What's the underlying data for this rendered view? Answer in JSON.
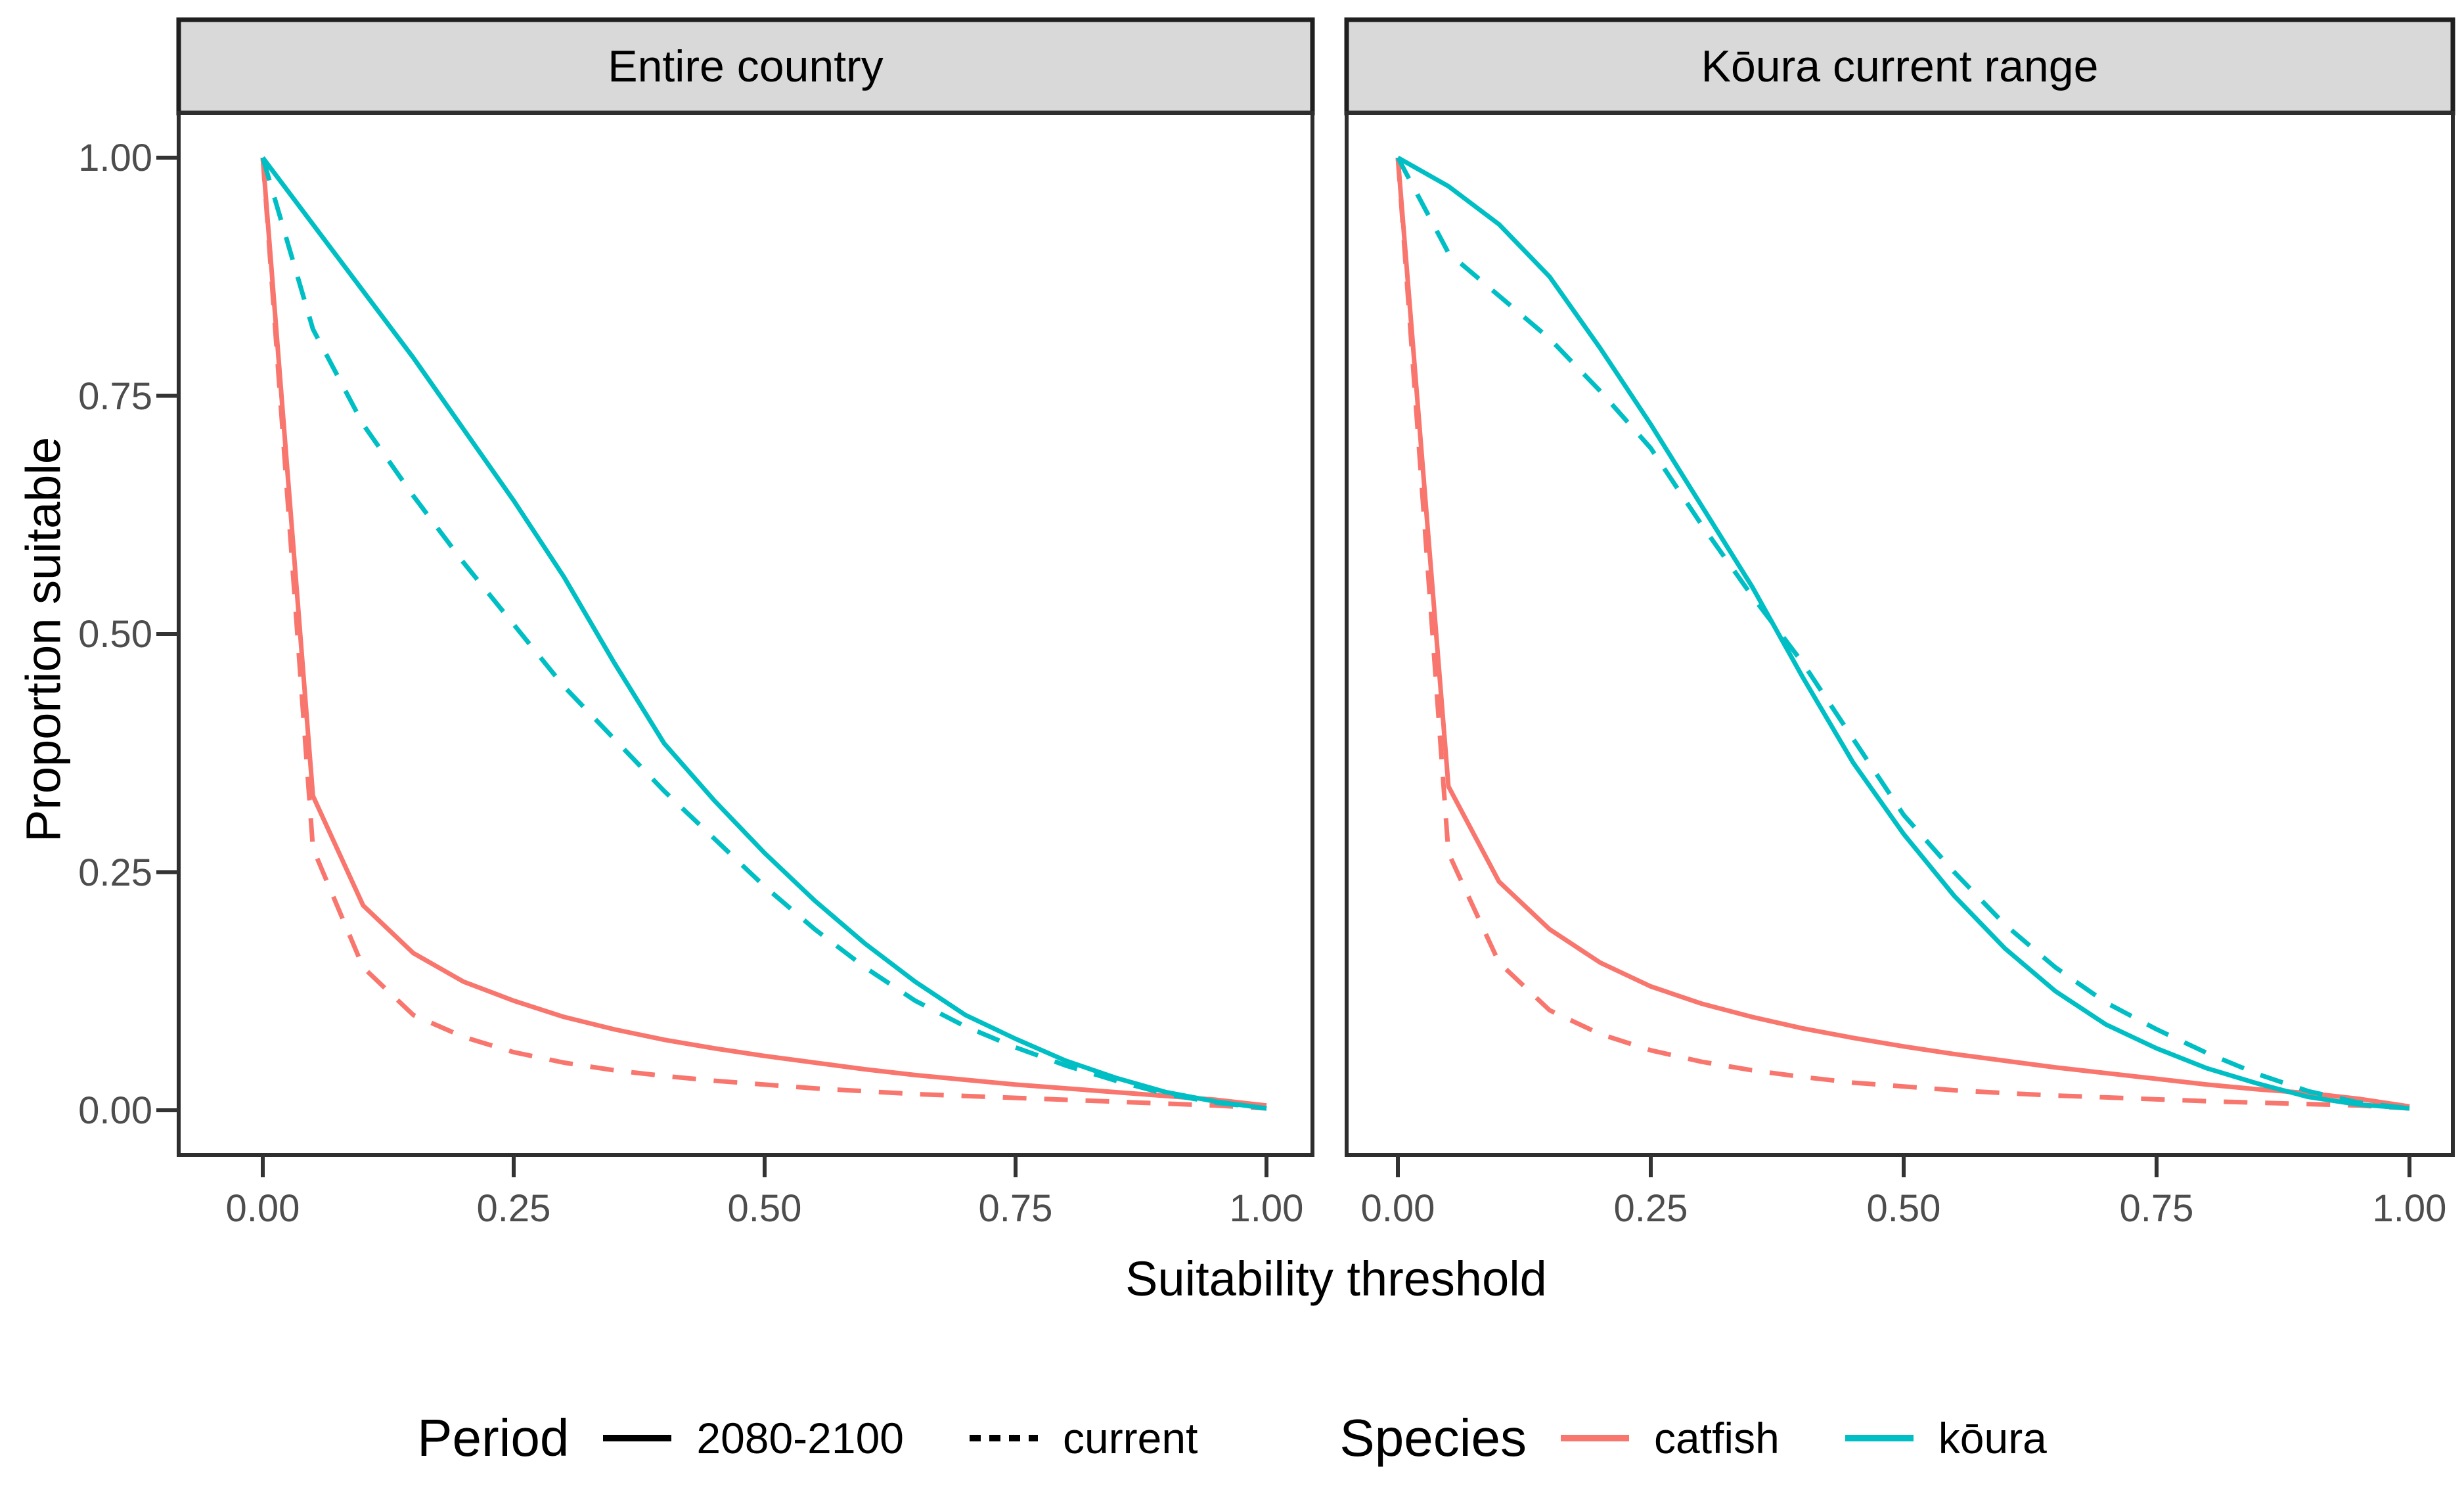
{
  "figure": {
    "facets": [
      {
        "label": "Entire country"
      },
      {
        "label": "Kōura current range"
      }
    ],
    "x_axis": {
      "title": "Suitability threshold",
      "ticks": [
        "0.00",
        "0.25",
        "0.50",
        "0.75",
        "1.00"
      ],
      "tick_values": [
        0,
        0.25,
        0.5,
        0.75,
        1
      ]
    },
    "y_axis": {
      "title": "Proportion suitable",
      "ticks": [
        "1.00",
        "0.75",
        "0.50",
        "0.25",
        "0.00"
      ],
      "tick_values": [
        1,
        0.75,
        0.5,
        0.25,
        0
      ]
    },
    "legend": {
      "period": {
        "title": "Period",
        "key_color": "#000000",
        "items": [
          {
            "label": "2080-2100",
            "linetype": "solid"
          },
          {
            "label": "current",
            "linetype": "dashed"
          }
        ]
      },
      "species": {
        "title": "Species",
        "items": [
          {
            "label": "catfish",
            "color": "#F8766D"
          },
          {
            "label": "kōura",
            "color": "#00BFC4"
          }
        ]
      }
    },
    "colors": {
      "catfish": "#F8766D",
      "koura": "#00BFC4",
      "strip_fill": "#D9D9D9",
      "strip_border": "#1F1F1F",
      "panel_border": "#2E2E2E",
      "tick_color": "#333333",
      "tick_text": "#4D4D4D"
    }
  },
  "chart_data": [
    {
      "type": "line",
      "facet": "Entire country",
      "xlabel": "Suitability threshold",
      "ylabel": "Proportion suitable",
      "xlim": [
        0,
        1
      ],
      "ylim": [
        0,
        1
      ],
      "x": [
        0,
        0.05,
        0.1,
        0.15,
        0.2,
        0.25,
        0.3,
        0.35,
        0.4,
        0.45,
        0.5,
        0.55,
        0.6,
        0.65,
        0.7,
        0.75,
        0.8,
        0.85,
        0.9,
        0.95,
        1.0
      ],
      "series": [
        {
          "name": "catfish current",
          "species": "catfish",
          "period": "current",
          "color": "#F8766D",
          "linetype": "dashed",
          "values": [
            1.0,
            0.275,
            0.15,
            0.1,
            0.077,
            0.061,
            0.05,
            0.042,
            0.036,
            0.031,
            0.027,
            0.023,
            0.02,
            0.017,
            0.015,
            0.013,
            0.011,
            0.009,
            0.007,
            0.005,
            0.002
          ]
        },
        {
          "name": "catfish 2080-2100",
          "species": "catfish",
          "period": "2080-2100",
          "color": "#F8766D",
          "linetype": "solid",
          "values": [
            1.0,
            0.33,
            0.215,
            0.165,
            0.135,
            0.115,
            0.098,
            0.085,
            0.074,
            0.065,
            0.057,
            0.05,
            0.043,
            0.037,
            0.032,
            0.027,
            0.023,
            0.019,
            0.015,
            0.011,
            0.005
          ]
        },
        {
          "name": "kōura 2080-2100",
          "species": "kōura",
          "period": "2080-2100",
          "color": "#00BFC4",
          "linetype": "solid",
          "values": [
            1.0,
            0.93,
            0.86,
            0.79,
            0.715,
            0.64,
            0.56,
            0.47,
            0.385,
            0.325,
            0.27,
            0.22,
            0.175,
            0.135,
            0.1,
            0.075,
            0.052,
            0.034,
            0.019,
            0.009,
            0.002
          ]
        },
        {
          "name": "kōura current",
          "species": "kōura",
          "period": "current",
          "color": "#00BFC4",
          "linetype": "dashed",
          "values": [
            1.0,
            0.82,
            0.72,
            0.645,
            0.575,
            0.51,
            0.445,
            0.39,
            0.335,
            0.285,
            0.235,
            0.19,
            0.15,
            0.115,
            0.088,
            0.066,
            0.047,
            0.031,
            0.017,
            0.008,
            0.002
          ]
        }
      ]
    },
    {
      "type": "line",
      "facet": "Kōura current range",
      "xlabel": "Suitability threshold",
      "ylabel": "Proportion suitable",
      "xlim": [
        0,
        1
      ],
      "ylim": [
        0,
        1
      ],
      "x": [
        0,
        0.05,
        0.1,
        0.15,
        0.2,
        0.25,
        0.3,
        0.35,
        0.4,
        0.45,
        0.5,
        0.55,
        0.6,
        0.65,
        0.7,
        0.75,
        0.8,
        0.85,
        0.9,
        0.95,
        1.0
      ],
      "series": [
        {
          "name": "catfish current",
          "species": "catfish",
          "period": "current",
          "color": "#F8766D",
          "linetype": "dashed",
          "values": [
            1.0,
            0.27,
            0.155,
            0.105,
            0.08,
            0.063,
            0.051,
            0.042,
            0.035,
            0.029,
            0.025,
            0.021,
            0.018,
            0.0155,
            0.0135,
            0.0115,
            0.0095,
            0.008,
            0.0065,
            0.005,
            0.002
          ]
        },
        {
          "name": "catfish 2080-2100",
          "species": "catfish",
          "period": "2080-2100",
          "color": "#F8766D",
          "linetype": "solid",
          "values": [
            1.0,
            0.34,
            0.24,
            0.19,
            0.155,
            0.13,
            0.112,
            0.098,
            0.086,
            0.076,
            0.067,
            0.059,
            0.052,
            0.045,
            0.039,
            0.033,
            0.027,
            0.022,
            0.018,
            0.012,
            0.004
          ]
        },
        {
          "name": "kōura 2080-2100",
          "species": "kōura",
          "period": "2080-2100",
          "color": "#00BFC4",
          "linetype": "solid",
          "values": [
            1.0,
            0.97,
            0.93,
            0.875,
            0.8,
            0.72,
            0.635,
            0.55,
            0.455,
            0.365,
            0.29,
            0.225,
            0.17,
            0.125,
            0.09,
            0.065,
            0.044,
            0.028,
            0.014,
            0.006,
            0.002
          ]
        },
        {
          "name": "kōura current",
          "species": "kōura",
          "period": "current",
          "color": "#00BFC4",
          "linetype": "dashed",
          "values": [
            1.0,
            0.9,
            0.855,
            0.81,
            0.755,
            0.695,
            0.615,
            0.54,
            0.47,
            0.39,
            0.31,
            0.25,
            0.195,
            0.15,
            0.113,
            0.085,
            0.06,
            0.038,
            0.02,
            0.008,
            0.002
          ]
        }
      ]
    }
  ]
}
